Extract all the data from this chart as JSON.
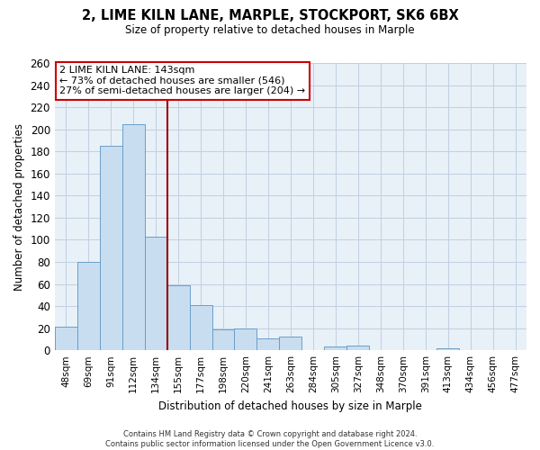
{
  "title1": "2, LIME KILN LANE, MARPLE, STOCKPORT, SK6 6BX",
  "title2": "Size of property relative to detached houses in Marple",
  "xlabel": "Distribution of detached houses by size in Marple",
  "ylabel": "Number of detached properties",
  "bar_color": "#c8ddf0",
  "bar_edge_color": "#6b9fc8",
  "categories": [
    "48sqm",
    "69sqm",
    "91sqm",
    "112sqm",
    "134sqm",
    "155sqm",
    "177sqm",
    "198sqm",
    "220sqm",
    "241sqm",
    "263sqm",
    "284sqm",
    "305sqm",
    "327sqm",
    "348sqm",
    "370sqm",
    "391sqm",
    "413sqm",
    "434sqm",
    "456sqm",
    "477sqm"
  ],
  "values": [
    21,
    80,
    185,
    205,
    103,
    59,
    41,
    19,
    20,
    11,
    12,
    0,
    3,
    4,
    0,
    0,
    0,
    2,
    0,
    0,
    0
  ],
  "ylim": [
    0,
    260
  ],
  "yticks": [
    0,
    20,
    40,
    60,
    80,
    100,
    120,
    140,
    160,
    180,
    200,
    220,
    240,
    260
  ],
  "property_label": "2 LIME KILN LANE: 143sqm",
  "annotation_line1": "← 73% of detached houses are smaller (546)",
  "annotation_line2": "27% of semi-detached houses are larger (204) →",
  "vline_x_index": 4,
  "vline_color": "#990000",
  "annotation_box_color": "#ffffff",
  "annotation_box_edgecolor": "#cc0000",
  "footer_line1": "Contains HM Land Registry data © Crown copyright and database right 2024.",
  "footer_line2": "Contains public sector information licensed under the Open Government Licence v3.0.",
  "background_color": "#ffffff",
  "plot_bg_color": "#e8f0f8",
  "grid_color": "#c0cfe0"
}
